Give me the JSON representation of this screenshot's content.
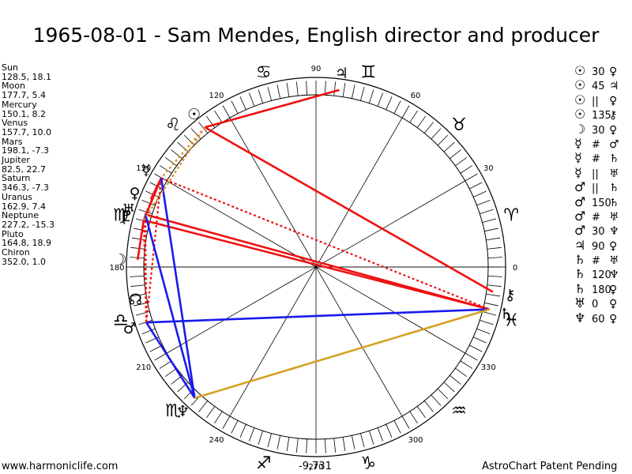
{
  "title": "1965-08-01 - Sam Mendes, English director and producer",
  "planets": [
    {
      "name": "Sun",
      "values": "128.5, 18.1",
      "glyph": "☉",
      "lon": 128.5
    },
    {
      "name": "Moon",
      "values": "177.7, 5.4",
      "glyph": "☽",
      "lon": 177.7
    },
    {
      "name": "Mercury",
      "values": "150.1, 8.2",
      "glyph": "☿",
      "lon": 150.1
    },
    {
      "name": "Venus",
      "values": "157.7, 10.0",
      "glyph": "♀",
      "lon": 157.7
    },
    {
      "name": "Mars",
      "values": "198.1, -7.3",
      "glyph": "♂",
      "lon": 198.1
    },
    {
      "name": "Jupiter",
      "values": "82.5, 22.7",
      "glyph": "♃",
      "lon": 82.5
    },
    {
      "name": "Saturn",
      "values": "346.3, -7.3",
      "glyph": "♄",
      "lon": 346.3
    },
    {
      "name": "Uranus",
      "values": "162.9, 7.4",
      "glyph": "♅",
      "lon": 162.9
    },
    {
      "name": "Neptune",
      "values": "227.2, -15.3",
      "glyph": "♆",
      "lon": 227.2
    },
    {
      "name": "Pluto",
      "values": "164.8, 18.9",
      "glyph": "♇",
      "lon": 164.8
    },
    {
      "name": "Chiron",
      "values": "352.0, 1.0",
      "glyph": "⚷",
      "lon": 352.0
    }
  ],
  "wheel_degree_labels": [
    "0",
    "30",
    "60",
    "90",
    "120",
    "150",
    "180",
    "210",
    "240",
    "270",
    "300",
    "330"
  ],
  "zodiac_glyphs": [
    "♈",
    "♉",
    "♊",
    "♋",
    "♌",
    "♍",
    "♎",
    "♏",
    "♐",
    "♑",
    "♒",
    "♓"
  ],
  "node_glyph": "☊",
  "node_lon": 190,
  "aspects_list": [
    {
      "p1": "☉",
      "aspect": "30",
      "p2": "♀"
    },
    {
      "p1": "☉",
      "aspect": "45",
      "p2": "♃"
    },
    {
      "p1": "☉",
      "aspect": "||",
      "p2": "♀"
    },
    {
      "p1": "☉",
      "aspect": "135",
      "p2": "⚷"
    },
    {
      "p1": "☽",
      "aspect": "30",
      "p2": "♀"
    },
    {
      "p1": "☿",
      "aspect": "#",
      "p2": "♂"
    },
    {
      "p1": "☿",
      "aspect": "#",
      "p2": "♄"
    },
    {
      "p1": "☿",
      "aspect": "||",
      "p2": "♅"
    },
    {
      "p1": "♂",
      "aspect": "||",
      "p2": "♄"
    },
    {
      "p1": "♂",
      "aspect": "150",
      "p2": "♄"
    },
    {
      "p1": "♂",
      "aspect": "#",
      "p2": "♅"
    },
    {
      "p1": "♂",
      "aspect": "30",
      "p2": "♆"
    },
    {
      "p1": "♃",
      "aspect": "90",
      "p2": "♀"
    },
    {
      "p1": "♄",
      "aspect": "#",
      "p2": "♅"
    },
    {
      "p1": "♄",
      "aspect": "120",
      "p2": "♆"
    },
    {
      "p1": "♄",
      "aspect": "180",
      "p2": "♀"
    },
    {
      "p1": "♅",
      "aspect": "0",
      "p2": "♀"
    },
    {
      "p1": "♆",
      "aspect": "60",
      "p2": "♀"
    }
  ],
  "aspect_lines": [
    {
      "from": "Sun",
      "to": "Chiron",
      "color": "#ee1111",
      "style": "solid"
    },
    {
      "from": "Sun",
      "to": "Jupiter",
      "color": "#ee1111",
      "style": "solid"
    },
    {
      "from": "Mercury",
      "to": "Mars",
      "color": "#ee1111",
      "style": "dotted"
    },
    {
      "from": "Mercury",
      "to": "Saturn",
      "color": "#ee1111",
      "style": "dotted"
    },
    {
      "from": "Mercury",
      "to": "Uranus",
      "color": "#ee1111",
      "style": "dotted"
    },
    {
      "from": "Mars",
      "to": "Uranus",
      "color": "#ee1111",
      "style": "dotted"
    },
    {
      "from": "Saturn",
      "to": "Uranus",
      "color": "#ee1111",
      "style": "dotted"
    },
    {
      "from": "Moon",
      "to": "Pluto",
      "color": "#ee1111",
      "style": "solid"
    },
    {
      "from": "Mercury",
      "to": "Pluto",
      "color": "#ee1111",
      "style": "solid"
    },
    {
      "from": "Uranus",
      "to": "Saturn",
      "color": "#ee1111",
      "style": "solid"
    },
    {
      "from": "Saturn",
      "to": "Pluto",
      "color": "#ee1111",
      "style": "solid"
    },
    {
      "from": "Venus",
      "to": "Mercury",
      "color": "#ee1111",
      "style": "solid"
    },
    {
      "from": "Mars",
      "to": "Neptune",
      "color": "#1a1aee",
      "style": "solid"
    },
    {
      "from": "Uranus",
      "to": "Neptune",
      "color": "#1a1aee",
      "style": "solid"
    },
    {
      "from": "Mars",
      "to": "Saturn",
      "color": "#1a1aee",
      "style": "solid"
    },
    {
      "from": "Mercury",
      "to": "Neptune",
      "color": "#1a1aee",
      "style": "solid"
    },
    {
      "from": "Neptune",
      "to": "Saturn",
      "color": "#d4a020",
      "style": "solid"
    },
    {
      "from": "Sun",
      "to": "Mercury",
      "color": "#e08a20",
      "style": "dotted"
    },
    {
      "from": "Sun",
      "to": "Pluto",
      "color": "#e08a20",
      "style": "dotted"
    },
    {
      "from": "Mars",
      "to": "Pluto",
      "color": "#ee1111",
      "style": "dotted"
    }
  ],
  "footer": {
    "left": "www.harmoniclife.com",
    "center": "-9,731",
    "right": "AstroChart Patent Pending"
  }
}
